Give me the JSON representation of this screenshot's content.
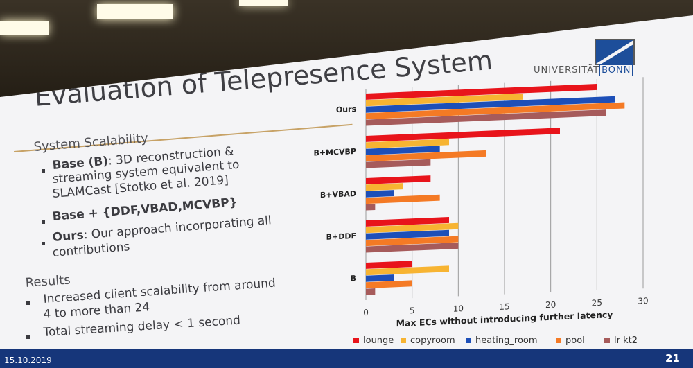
{
  "slide": {
    "title": "Evaluation of Telepresence System",
    "logo_text": "UNIVERSITÄT",
    "logo_bonn": "BONN",
    "page_number": "21",
    "date": "15.10.2019"
  },
  "content": {
    "section1": "System Scalability",
    "b1_bold": "Base (B)",
    "b1_rest": ": 3D reconstruction &",
    "b1_l2": "streaming system equivalent to",
    "b1_l3": "SLAMCast [Stotko et al. 2019]",
    "b2_bold": "Base + {DDF,VBAD,MCVBP}",
    "b3_bold": "Ours",
    "b3_rest": ": Our approach incorporating all",
    "b3_l2": "contributions",
    "section2": "Results",
    "r1_l1": "Increased client scalability from around",
    "r1_l2": "4 to more than 24",
    "r2": "Total streaming delay < 1 second"
  },
  "colors": {
    "lounge": "#e8141b",
    "copyroom": "#f7b432",
    "heating_room": "#1d4fb8",
    "pool": "#f47a25",
    "lr_kt2": "#a65b5b"
  },
  "chart_data": {
    "type": "bar",
    "orientation": "horizontal",
    "categories": [
      "Ours",
      "B+MCVBP",
      "B+VBAD",
      "B+DDF",
      "B"
    ],
    "series": [
      {
        "name": "lounge",
        "values": [
          25,
          21,
          7,
          9,
          5
        ]
      },
      {
        "name": "copyroom",
        "values": [
          17,
          9,
          4,
          10,
          9
        ]
      },
      {
        "name": "heating_room",
        "values": [
          27,
          8,
          3,
          9,
          3
        ]
      },
      {
        "name": "pool",
        "values": [
          28,
          13,
          8,
          10,
          5
        ]
      },
      {
        "name": "lr kt2",
        "values": [
          26,
          7,
          1,
          10,
          1
        ]
      }
    ],
    "xlabel": "Max ECs without introducing further latency",
    "xlim": [
      0,
      30
    ],
    "xticks": [
      "0",
      "5",
      "10",
      "15",
      "20",
      "25",
      "30"
    ],
    "grid": true,
    "legend": "bottom"
  }
}
